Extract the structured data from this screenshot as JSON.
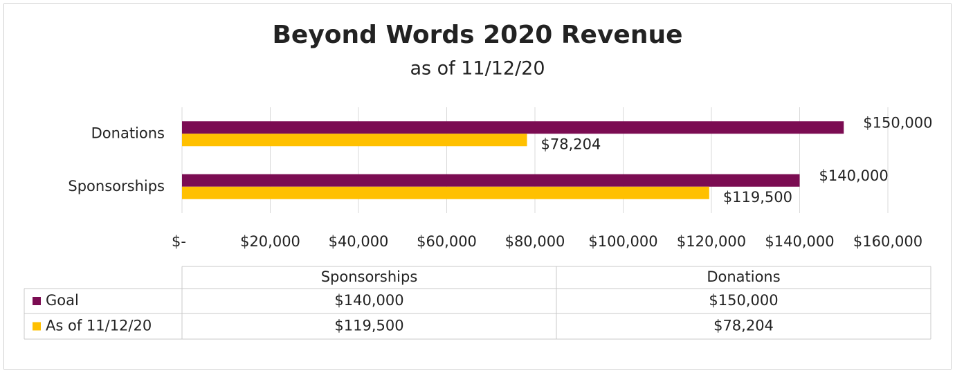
{
  "chart_data": {
    "type": "bar",
    "orientation": "horizontal",
    "title": "Beyond Words 2020 Revenue",
    "subtitle": "as of 11/12/20",
    "categories": [
      "Sponsorships",
      "Donations"
    ],
    "series": [
      {
        "name": "Goal",
        "color": "#7b0c52",
        "values": [
          140000,
          150000
        ],
        "value_labels": [
          "$140,000",
          "$150,000"
        ]
      },
      {
        "name": "As of 11/12/20",
        "color": "#ffc000",
        "values": [
          119500,
          78204
        ],
        "value_labels": [
          "$119,500",
          "$78,204"
        ]
      }
    ],
    "xlim": [
      0,
      160000
    ],
    "xticks": [
      {
        "value": 0,
        "label": "$-"
      },
      {
        "value": 20000,
        "label": "$20,000"
      },
      {
        "value": 40000,
        "label": "$40,000"
      },
      {
        "value": 60000,
        "label": "$60,000"
      },
      {
        "value": 80000,
        "label": "$80,000"
      },
      {
        "value": 100000,
        "label": "$100,000"
      },
      {
        "value": 120000,
        "label": "$120,000"
      },
      {
        "value": 140000,
        "label": "$140,000"
      },
      {
        "value": 160000,
        "label": "$160,000"
      }
    ],
    "grid": true,
    "data_table": true
  }
}
